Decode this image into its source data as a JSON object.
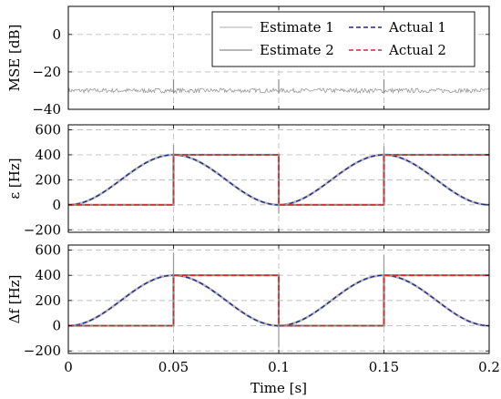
{
  "chart_data": [
    {
      "type": "line",
      "ylabel": "MSE [dB]",
      "ylim": [
        -40,
        15
      ],
      "yticks": [
        -40,
        -20,
        0
      ],
      "ytick_labels": [
        "−40",
        "−20",
        "0"
      ],
      "xlim": [
        0,
        0.2
      ],
      "grid": true,
      "legend": {
        "placement": "top-right",
        "entries": [
          {
            "label": "Estimate 1",
            "color": "#bdbdbd",
            "style": "solid"
          },
          {
            "label": "Actual 1",
            "color": "#1f2a8a",
            "style": "dashed"
          },
          {
            "label": "Estimate 2",
            "color": "#8c8c8c",
            "style": "solid"
          },
          {
            "label": "Actual 2",
            "color": "#d62728",
            "style": "dashed"
          }
        ]
      },
      "series": [
        {
          "name": "Estimate 1",
          "baseline_db": -30,
          "noise_db": 1.2,
          "spikes_at": [
            0.05,
            0.1,
            0.15
          ],
          "spike_top_db": -24,
          "color": "#9a9a9a"
        }
      ]
    },
    {
      "type": "line",
      "ylabel": "ε [Hz]",
      "ylim": [
        -220,
        640
      ],
      "yticks": [
        -200,
        0,
        200,
        400,
        600
      ],
      "ytick_labels": [
        "−200",
        "0",
        "200",
        "400",
        "600"
      ],
      "xlim": [
        0,
        0.2
      ],
      "grid": true,
      "series": [
        {
          "name": "Actual 1",
          "kind": "raised-cosine",
          "period": 0.1,
          "amplitude": 400,
          "color": "#1f2a8a"
        },
        {
          "name": "Actual 2",
          "kind": "square",
          "low": 0,
          "high": 400,
          "steps": [
            [
              0,
              0
            ],
            [
              0.05,
              400
            ],
            [
              0.1,
              0
            ],
            [
              0.15,
              400
            ],
            [
              0.2,
              400
            ]
          ],
          "color": "#d62728"
        }
      ],
      "spikes": [
        {
          "x": 0.05,
          "top": 480
        },
        {
          "x": 0.1,
          "bottom": -70
        },
        {
          "x": 0.15,
          "top": 470
        }
      ]
    },
    {
      "type": "line",
      "ylabel": "Δf [Hz]",
      "ylim": [
        -220,
        640
      ],
      "yticks": [
        -200,
        0,
        200,
        400,
        600
      ],
      "ytick_labels": [
        "−200",
        "0",
        "200",
        "400",
        "600"
      ],
      "xlim": [
        0,
        0.2
      ],
      "xticks": [
        0,
        0.05,
        0.1,
        0.15,
        0.2
      ],
      "xtick_labels": [
        "0",
        "0.05",
        "0.1",
        "0.15",
        "0.2"
      ],
      "xlabel": "Time [s]",
      "grid": true,
      "series": [
        {
          "name": "Actual 1",
          "kind": "raised-cosine",
          "period": 0.1,
          "amplitude": 400,
          "color": "#1f2a8a"
        },
        {
          "name": "Actual 2",
          "kind": "square",
          "low": 0,
          "high": 400,
          "steps": [
            [
              0,
              0
            ],
            [
              0.05,
              400
            ],
            [
              0.1,
              0
            ],
            [
              0.15,
              400
            ],
            [
              0.2,
              400
            ]
          ],
          "color": "#d62728"
        }
      ],
      "spikes": [
        {
          "x": 0.05,
          "top": 580
        },
        {
          "x": 0.1,
          "bottom": -170
        },
        {
          "x": 0.15,
          "top": 560
        }
      ]
    }
  ]
}
